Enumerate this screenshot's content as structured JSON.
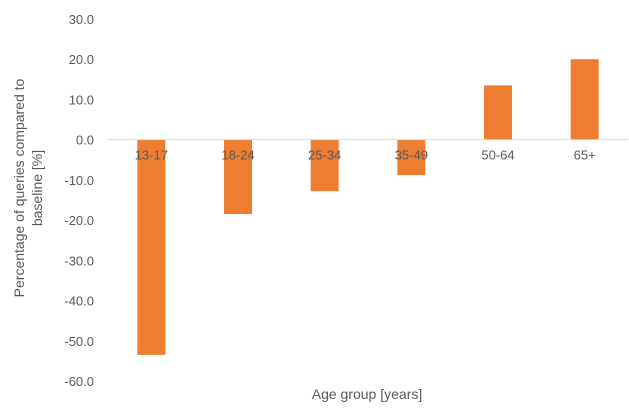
{
  "chart_data": {
    "type": "bar",
    "categories": [
      "13-17",
      "18-24",
      "25-34",
      "35-49",
      "50-64",
      "65+"
    ],
    "values": [
      -53.5,
      -18.5,
      -12.8,
      -8.8,
      13.5,
      20.0
    ],
    "xlabel": "Age group [years]",
    "ylabel_lines": [
      "Percentage of queries compared to",
      "baseline [%]"
    ],
    "ylim": [
      -60,
      30
    ],
    "yticks": [
      30,
      20,
      10,
      0,
      -10,
      -20,
      -30,
      -40,
      -50,
      -60
    ],
    "ytick_labels": [
      "30.0",
      "20.0",
      "10.0",
      "0.0",
      "-10.0",
      "-20.0",
      "-30.0",
      "-40.0",
      "-50.0",
      "-60.0"
    ],
    "bar_color": "#ED7D31",
    "grid": false,
    "legend": "none"
  }
}
